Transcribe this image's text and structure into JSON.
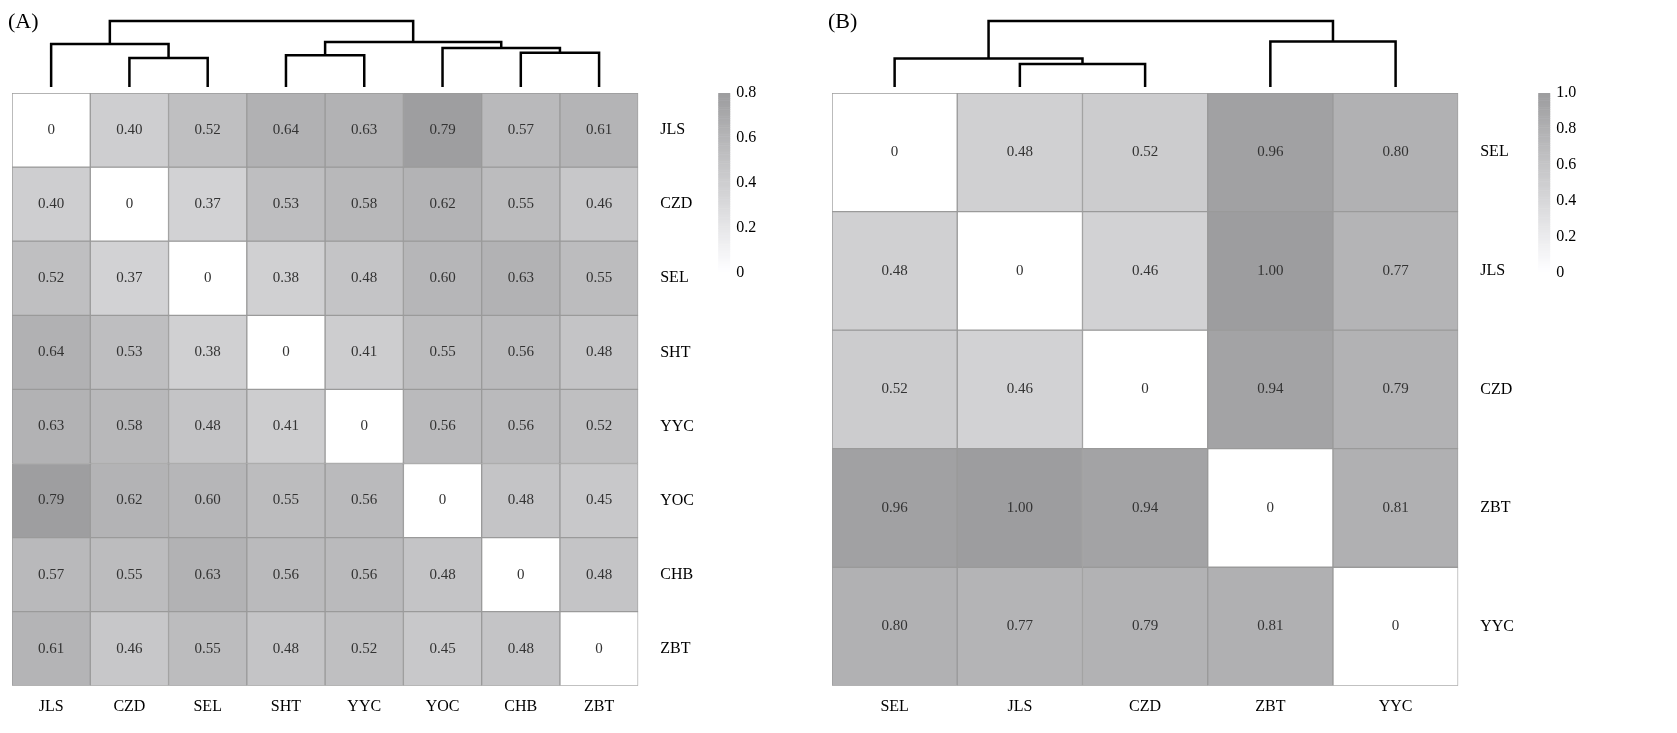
{
  "chart_data": [
    {
      "type": "heatmap",
      "title": "(A)",
      "categories": [
        "JLS",
        "CZD",
        "SEL",
        "SHT",
        "YYC",
        "YOC",
        "CHB",
        "ZBT"
      ],
      "y_categories": [
        "JLS",
        "CZD",
        "SEL",
        "SHT",
        "YYC",
        "YOC",
        "CHB",
        "ZBT"
      ],
      "cells": [
        [
          0,
          0.4,
          0.52,
          0.64,
          0.63,
          0.79,
          0.57,
          0.61
        ],
        [
          0.4,
          0,
          0.37,
          0.53,
          0.58,
          0.62,
          0.55,
          0.46
        ],
        [
          0.52,
          0.37,
          0,
          0.38,
          0.48,
          0.6,
          0.63,
          0.55
        ],
        [
          0.64,
          0.53,
          0.38,
          0,
          0.41,
          0.55,
          0.56,
          0.48
        ],
        [
          0.63,
          0.58,
          0.48,
          0.41,
          0,
          0.56,
          0.56,
          0.52
        ],
        [
          0.79,
          0.62,
          0.6,
          0.55,
          0.56,
          0,
          0.48,
          0.45
        ],
        [
          0.57,
          0.55,
          0.63,
          0.56,
          0.56,
          0.48,
          0,
          0.48
        ],
        [
          0.61,
          0.46,
          0.55,
          0.48,
          0.52,
          0.45,
          0.48,
          0
        ]
      ],
      "cell_labels": [
        [
          "0",
          "0.40",
          "0.52",
          "0.64",
          "0.63",
          "0.79",
          "0.57",
          "0.61"
        ],
        [
          "0.40",
          "0",
          "0.37",
          "0.53",
          "0.58",
          "0.62",
          "0.55",
          "0.46"
        ],
        [
          "0.52",
          "0.37",
          "0",
          "0.38",
          "0.48",
          "0.60",
          "0.63",
          "0.55"
        ],
        [
          "0.64",
          "0.53",
          "0.38",
          "0",
          "0.41",
          "0.55",
          "0.56",
          "0.48"
        ],
        [
          "0.63",
          "0.58",
          "0.48",
          "0.41",
          "0",
          "0.56",
          "0.56",
          "0.52"
        ],
        [
          "0.79",
          "0.62",
          "0.60",
          "0.55",
          "0.56",
          "0",
          "0.48",
          "0.45"
        ],
        [
          "0.57",
          "0.55",
          "0.63",
          "0.56",
          "0.56",
          "0.48",
          "0",
          "0.48"
        ],
        [
          "0.61",
          "0.46",
          "0.55",
          "0.48",
          "0.52",
          "0.45",
          "0.48",
          "0"
        ]
      ],
      "clim": [
        0,
        0.8
      ],
      "cticks": [
        0,
        0.2,
        0.4,
        0.6,
        0.8
      ]
    },
    {
      "type": "heatmap",
      "title": "(B)",
      "categories": [
        "SEL",
        "JLS",
        "CZD",
        "ZBT",
        "YYC"
      ],
      "y_categories": [
        "SEL",
        "JLS",
        "CZD",
        "ZBT",
        "YYC"
      ],
      "cells": [
        [
          0,
          0.48,
          0.52,
          0.96,
          0.8
        ],
        [
          0.48,
          0,
          0.46,
          1,
          0.77
        ],
        [
          0.52,
          0.46,
          0,
          0.94,
          0.79
        ],
        [
          0.96,
          1,
          0.94,
          0,
          0.81
        ],
        [
          0.8,
          0.77,
          0.79,
          0.81,
          0
        ]
      ],
      "cell_labels": [
        [
          "0",
          "0.48",
          "0.52",
          "0.96",
          "0.80"
        ],
        [
          "0.48",
          "0",
          "0.46",
          "1.00",
          "0.77"
        ],
        [
          "0.52",
          "0.46",
          "0",
          "0.94",
          "0.79"
        ],
        [
          "0.96",
          "1.00",
          "0.94",
          "0",
          "0.81"
        ],
        [
          "0.80",
          "0.77",
          "0.79",
          "0.81",
          "0"
        ]
      ],
      "clim": [
        0,
        1
      ],
      "cticks": [
        0,
        0.2,
        0.4,
        0.6,
        0.8,
        {
          "value": 1,
          "label": "1.0"
        }
      ]
    }
  ]
}
